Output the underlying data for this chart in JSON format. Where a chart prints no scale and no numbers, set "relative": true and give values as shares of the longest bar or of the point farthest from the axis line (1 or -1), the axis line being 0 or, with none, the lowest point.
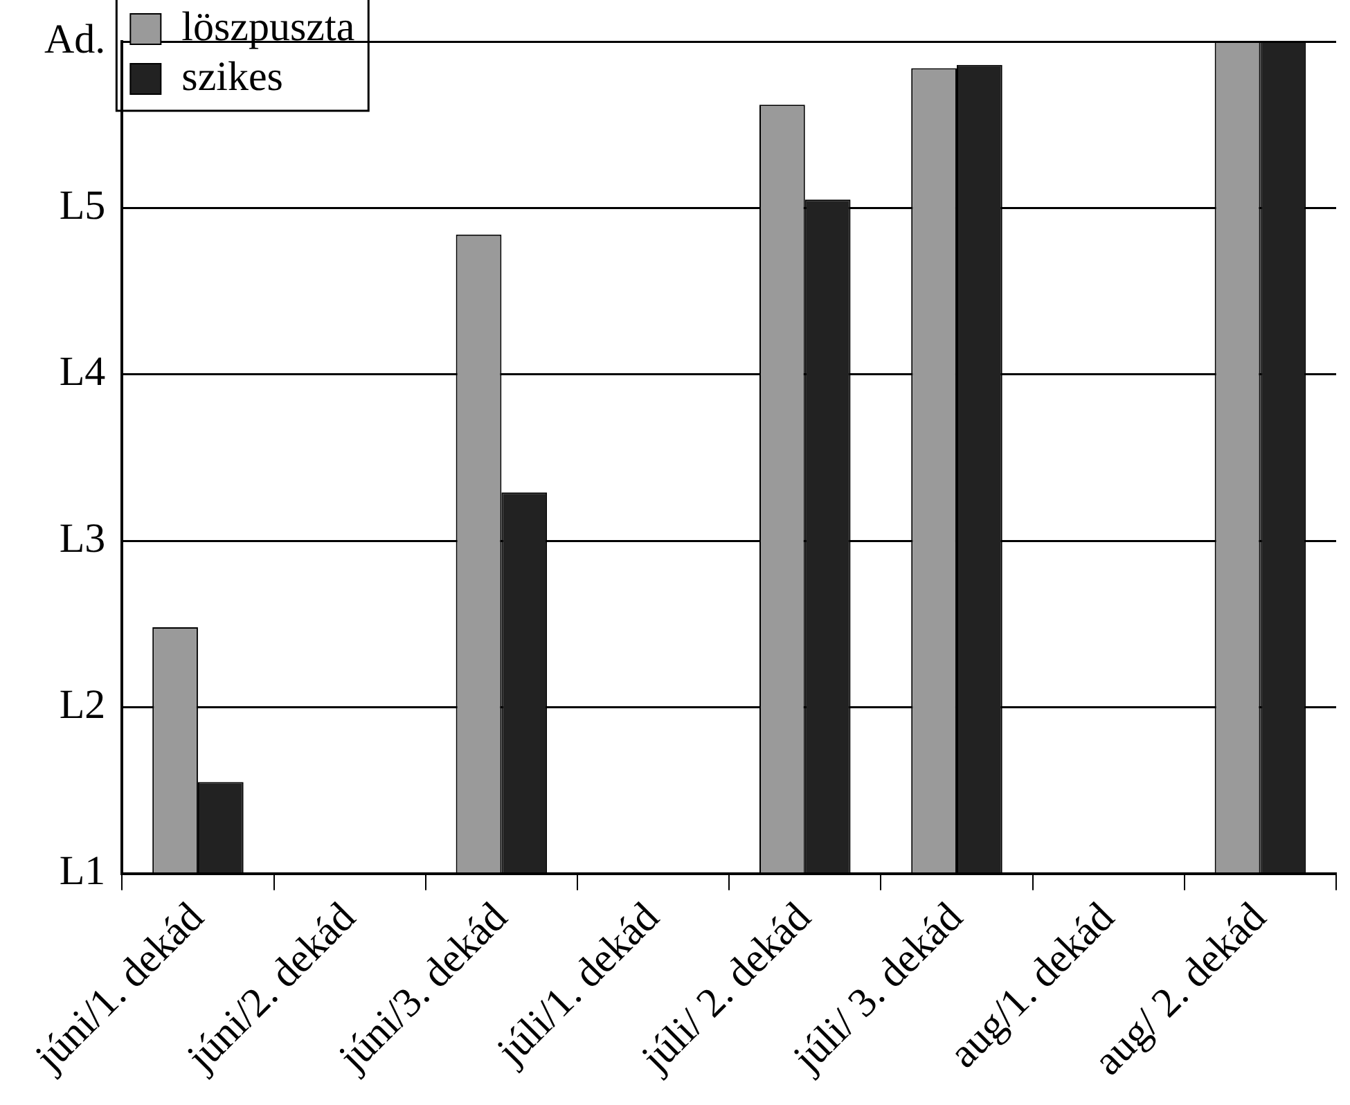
{
  "chart_data": {
    "type": "bar",
    "relative": true,
    "categories": [
      "júni/1. dekád",
      "júni/2. dekád",
      "júni/3. dekád",
      "júli/1. dekád",
      "júli/ 2. dekád",
      "júli/ 3. dekád",
      "aug/1. dekád",
      "aug/ 2. dekád"
    ],
    "series": [
      {
        "name": "löszpuszta",
        "color": "#9a9a9a",
        "values": [
          0.296,
          null,
          0.768,
          null,
          0.924,
          0.968,
          null,
          1
        ]
      },
      {
        "name": "szikes",
        "color": "#222222",
        "values": [
          0.11,
          null,
          0.458,
          null,
          0.81,
          0.972,
          null,
          1
        ]
      }
    ],
    "annotations": [
      "L1",
      "L2",
      "L3",
      "L4",
      "L5",
      "Ad."
    ],
    "grid": "y",
    "legend": "top left"
  }
}
